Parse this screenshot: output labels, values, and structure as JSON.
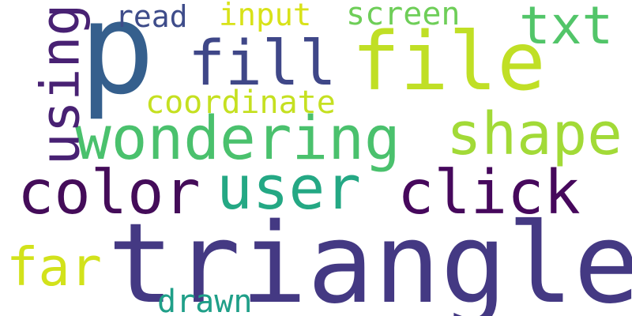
{
  "words": [
    {
      "text": "triangle",
      "color": "#443983"
    },
    {
      "text": "p",
      "color": "#355f8d"
    },
    {
      "text": "file",
      "color": "#c0df25"
    },
    {
      "text": "wondering",
      "color": "#4ac16d"
    },
    {
      "text": "color",
      "color": "#440c59"
    },
    {
      "text": "user",
      "color": "#24a884"
    },
    {
      "text": "click",
      "color": "#46085c"
    },
    {
      "text": "shape",
      "color": "#a2da37"
    },
    {
      "text": "fill",
      "color": "#3f4788"
    },
    {
      "text": "txt",
      "color": "#52c569"
    },
    {
      "text": "far",
      "color": "#d2e21b"
    },
    {
      "text": "coordinate",
      "color": "#c5e021"
    },
    {
      "text": "screen",
      "color": "#6ece58"
    },
    {
      "text": "input",
      "color": "#d8e219"
    },
    {
      "text": "read",
      "color": "#3e4c8a"
    },
    {
      "text": "drawn",
      "color": "#1f9f88"
    },
    {
      "text": "using",
      "color": "#482173"
    }
  ]
}
